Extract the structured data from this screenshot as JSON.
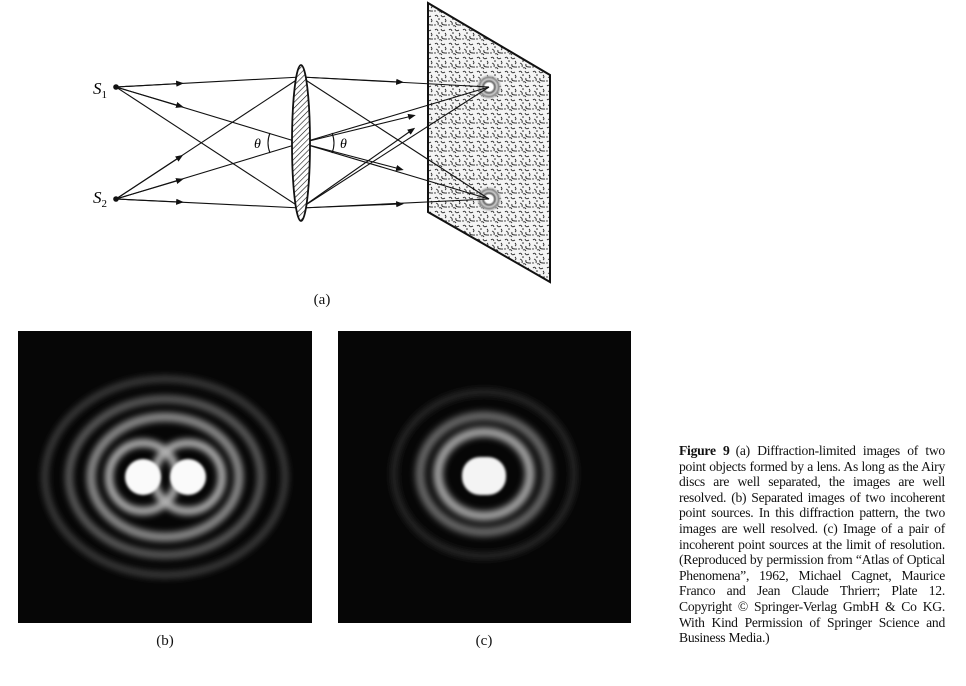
{
  "diagram": {
    "source_1_label": "S",
    "source_1_sub": "1",
    "source_2_label": "S",
    "source_2_sub": "2",
    "angle_label_left": "θ",
    "angle_label_right": "θ"
  },
  "panels": {
    "a_label": "(a)",
    "b_label": "(b)",
    "c_label": "(c)"
  },
  "caption": {
    "figure_label": "Figure 9",
    "text": "(a) Diffraction-limited images of two point objects formed by a lens. As long as the Airy discs are well separated, the images are well resolved. (b) Separated images of two incoherent point sources. In this diffraction pattern, the two images are well resolved. (c) Image of a pair of incoherent point sources at the limit of resolution. (Reproduced by permission from “Atlas of Optical Phenomena”, 1962, Michael Cagnet, Maurice Franco and Jean Claude Thrierr; Plate 12. Copyright © Springer-Verlag GmbH & Co KG. With Kind Permission of Springer Science and Business Media.)"
  }
}
